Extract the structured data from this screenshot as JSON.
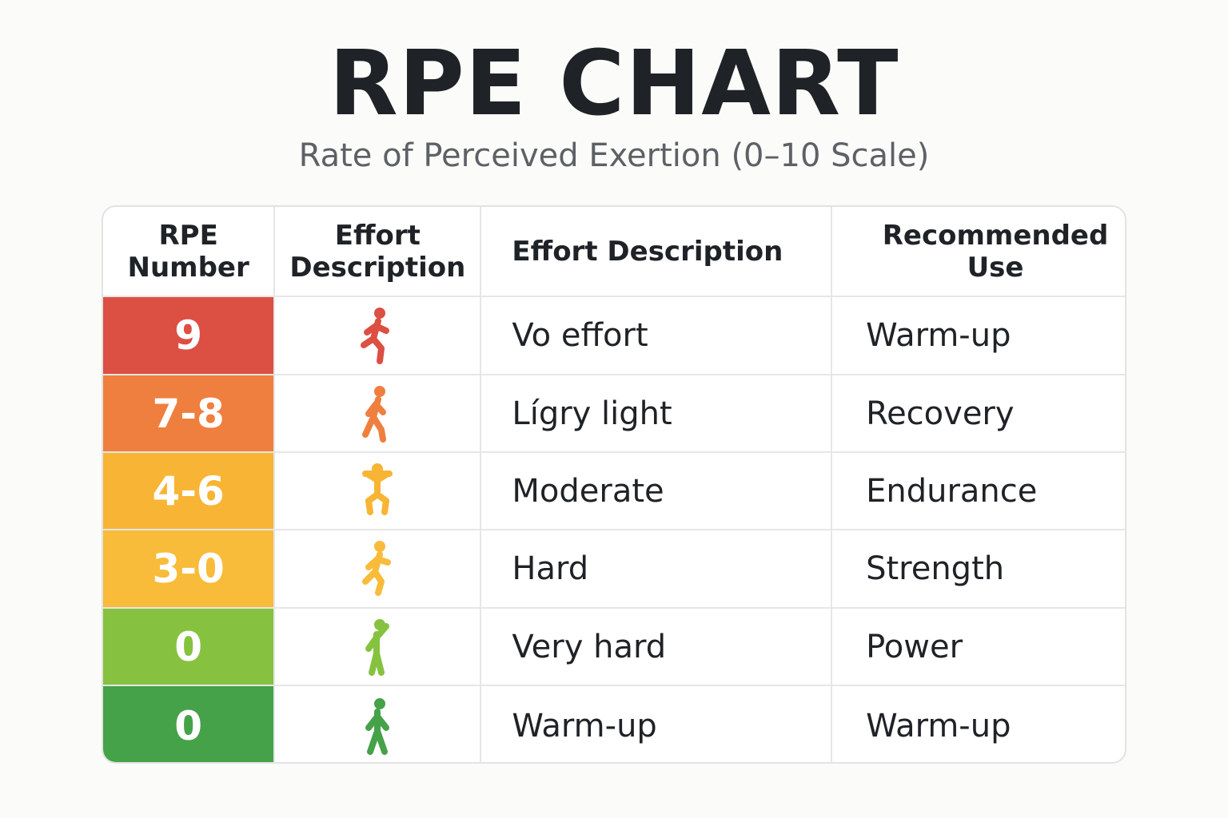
{
  "title": "RPE CHART",
  "subtitle": "Rate of Perceived Exertion (0–10 Scale)",
  "table": {
    "headers": [
      "RPE Number",
      "Effort Description",
      "Effort Description",
      "Recommended Use"
    ],
    "rows": [
      {
        "rpe": "9",
        "color": "#dc4f43",
        "description": "Vo effort",
        "use": "Warm-up"
      },
      {
        "rpe": "7-8",
        "color": "#ef7f3e",
        "description": "Lígry light",
        "use": "Recovery"
      },
      {
        "rpe": "4-6",
        "color": "#f8b434",
        "description": "Moderate",
        "use": "Endurance"
      },
      {
        "rpe": "3-0",
        "color": "#f9bb3a",
        "description": "Hard",
        "use": "Strength"
      },
      {
        "rpe": "0",
        "color": "#86c240",
        "description": "Very hard",
        "use": "Power"
      },
      {
        "rpe": "0",
        "color": "#45a248",
        "description": "Warm-up",
        "use": "Warm-up"
      }
    ]
  }
}
